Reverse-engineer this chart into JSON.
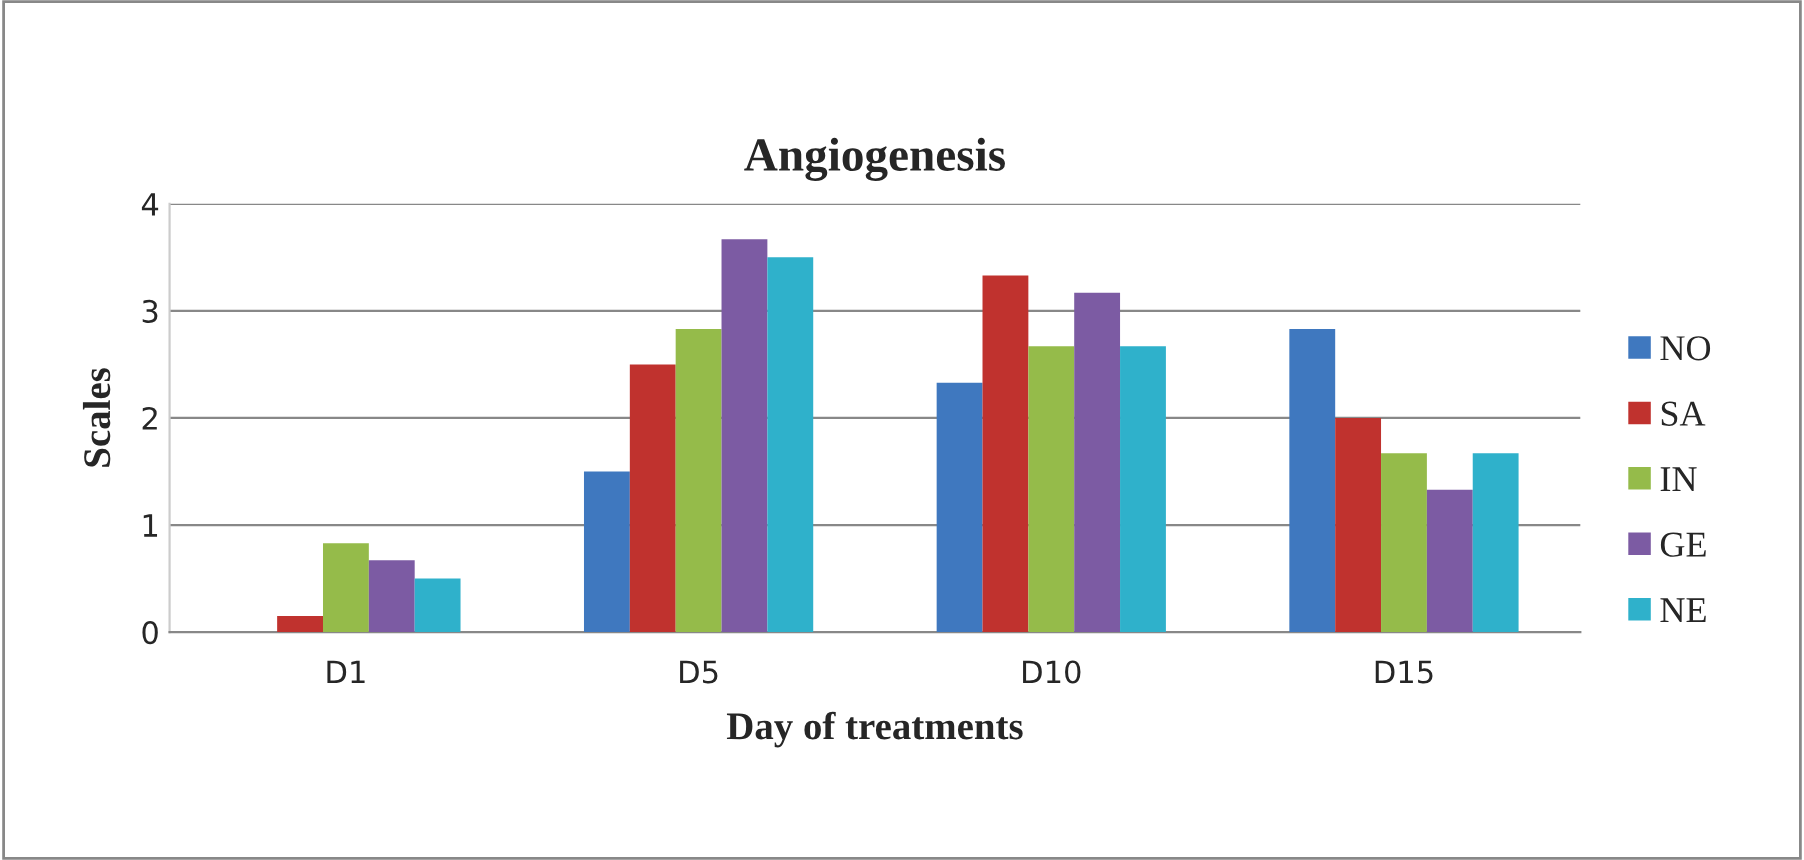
{
  "chart_data": {
    "type": "bar",
    "title": "Angiogenesis",
    "xlabel": "Day of treatments",
    "ylabel": "Scales",
    "categories": [
      "D1",
      "D5",
      "D10",
      "D15"
    ],
    "series": [
      {
        "name": "NO",
        "color": "#3f78bf",
        "values": [
          0,
          1.5,
          2.33,
          2.83
        ]
      },
      {
        "name": "SA",
        "color": "#c0322e",
        "values": [
          0.15,
          2.5,
          3.33,
          2.0
        ]
      },
      {
        "name": "IN",
        "color": "#95bb4a",
        "values": [
          0.83,
          2.83,
          2.67,
          1.67
        ]
      },
      {
        "name": "GE",
        "color": "#7c5ba3",
        "values": [
          0.67,
          3.67,
          3.17,
          1.33
        ]
      },
      {
        "name": "NE",
        "color": "#2fb1cb",
        "values": [
          0.5,
          3.5,
          2.67,
          1.67
        ]
      }
    ],
    "ylim": [
      0,
      4
    ],
    "yticks": [
      0,
      1,
      2,
      3,
      4
    ],
    "grid": "y",
    "legend": "right"
  }
}
